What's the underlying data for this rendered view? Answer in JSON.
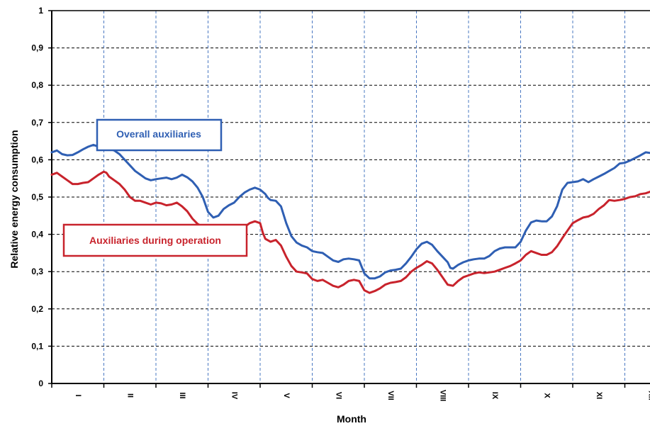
{
  "chart_data": {
    "type": "line",
    "title": "",
    "xlabel": "Month",
    "ylabel": "Relative energy consumption",
    "ylim": [
      0,
      1
    ],
    "x_range_months": [
      0,
      11.6
    ],
    "yticks": [
      "0",
      "0,1",
      "0,2",
      "0,3",
      "0,4",
      "0,5",
      "0,6",
      "0,7",
      "0,8",
      "0,9",
      "1"
    ],
    "categories": [
      "I",
      "II",
      "III",
      "IV",
      "V",
      "VI",
      "VII",
      "VIII",
      "IX",
      "X",
      "XI",
      "XII"
    ],
    "grid": {
      "horizontal": true,
      "vertical": true,
      "style": "dashed"
    },
    "series": [
      {
        "name": "Overall auxiliaries",
        "color": "#2f5fb3",
        "points": [
          [
            0.0,
            0.62
          ],
          [
            0.1,
            0.625
          ],
          [
            0.2,
            0.615
          ],
          [
            0.3,
            0.612
          ],
          [
            0.4,
            0.613
          ],
          [
            0.5,
            0.62
          ],
          [
            0.6,
            0.628
          ],
          [
            0.7,
            0.635
          ],
          [
            0.8,
            0.64
          ],
          [
            0.9,
            0.635
          ],
          [
            1.0,
            0.632
          ],
          [
            1.05,
            0.628
          ],
          [
            1.1,
            0.63
          ],
          [
            1.2,
            0.625
          ],
          [
            1.3,
            0.615
          ],
          [
            1.4,
            0.6
          ],
          [
            1.5,
            0.585
          ],
          [
            1.6,
            0.57
          ],
          [
            1.7,
            0.56
          ],
          [
            1.8,
            0.55
          ],
          [
            1.9,
            0.545
          ],
          [
            2.0,
            0.548
          ],
          [
            2.1,
            0.55
          ],
          [
            2.2,
            0.552
          ],
          [
            2.3,
            0.548
          ],
          [
            2.4,
            0.552
          ],
          [
            2.5,
            0.56
          ],
          [
            2.6,
            0.553
          ],
          [
            2.7,
            0.542
          ],
          [
            2.8,
            0.525
          ],
          [
            2.9,
            0.5
          ],
          [
            3.0,
            0.46
          ],
          [
            3.1,
            0.445
          ],
          [
            3.2,
            0.45
          ],
          [
            3.3,
            0.468
          ],
          [
            3.4,
            0.478
          ],
          [
            3.5,
            0.485
          ],
          [
            3.6,
            0.5
          ],
          [
            3.7,
            0.512
          ],
          [
            3.8,
            0.52
          ],
          [
            3.9,
            0.525
          ],
          [
            4.0,
            0.52
          ],
          [
            4.1,
            0.508
          ],
          [
            4.15,
            0.498
          ],
          [
            4.2,
            0.492
          ],
          [
            4.3,
            0.49
          ],
          [
            4.4,
            0.475
          ],
          [
            4.5,
            0.43
          ],
          [
            4.6,
            0.395
          ],
          [
            4.7,
            0.378
          ],
          [
            4.8,
            0.37
          ],
          [
            4.9,
            0.365
          ],
          [
            5.0,
            0.355
          ],
          [
            5.1,
            0.352
          ],
          [
            5.2,
            0.35
          ],
          [
            5.3,
            0.34
          ],
          [
            5.4,
            0.33
          ],
          [
            5.5,
            0.326
          ],
          [
            5.6,
            0.333
          ],
          [
            5.7,
            0.335
          ],
          [
            5.8,
            0.333
          ],
          [
            5.9,
            0.33
          ],
          [
            6.0,
            0.295
          ],
          [
            6.1,
            0.282
          ],
          [
            6.2,
            0.282
          ],
          [
            6.3,
            0.287
          ],
          [
            6.4,
            0.298
          ],
          [
            6.5,
            0.303
          ],
          [
            6.6,
            0.305
          ],
          [
            6.7,
            0.308
          ],
          [
            6.8,
            0.322
          ],
          [
            6.9,
            0.34
          ],
          [
            7.0,
            0.36
          ],
          [
            7.1,
            0.375
          ],
          [
            7.2,
            0.38
          ],
          [
            7.3,
            0.372
          ],
          [
            7.4,
            0.355
          ],
          [
            7.5,
            0.34
          ],
          [
            7.6,
            0.325
          ],
          [
            7.65,
            0.31
          ],
          [
            7.7,
            0.308
          ],
          [
            7.8,
            0.318
          ],
          [
            7.9,
            0.325
          ],
          [
            8.0,
            0.33
          ],
          [
            8.1,
            0.333
          ],
          [
            8.2,
            0.335
          ],
          [
            8.3,
            0.335
          ],
          [
            8.4,
            0.342
          ],
          [
            8.5,
            0.355
          ],
          [
            8.6,
            0.362
          ],
          [
            8.7,
            0.365
          ],
          [
            8.8,
            0.365
          ],
          [
            8.9,
            0.365
          ],
          [
            9.0,
            0.38
          ],
          [
            9.1,
            0.41
          ],
          [
            9.2,
            0.432
          ],
          [
            9.3,
            0.437
          ],
          [
            9.4,
            0.435
          ],
          [
            9.5,
            0.435
          ],
          [
            9.6,
            0.448
          ],
          [
            9.7,
            0.475
          ],
          [
            9.8,
            0.52
          ],
          [
            9.9,
            0.538
          ],
          [
            10.0,
            0.54
          ],
          [
            10.1,
            0.542
          ],
          [
            10.2,
            0.548
          ],
          [
            10.3,
            0.54
          ],
          [
            10.4,
            0.548
          ],
          [
            10.5,
            0.555
          ],
          [
            10.6,
            0.562
          ],
          [
            10.7,
            0.57
          ],
          [
            10.8,
            0.578
          ],
          [
            10.9,
            0.59
          ],
          [
            11.0,
            0.592
          ],
          [
            11.1,
            0.598
          ],
          [
            11.2,
            0.605
          ],
          [
            11.3,
            0.612
          ],
          [
            11.4,
            0.62
          ],
          [
            11.5,
            0.618
          ],
          [
            11.6,
            0.612
          ]
        ]
      },
      {
        "name": "Auxiliaries during operation",
        "color": "#c8232c",
        "points": [
          [
            0.0,
            0.56
          ],
          [
            0.1,
            0.565
          ],
          [
            0.2,
            0.555
          ],
          [
            0.3,
            0.545
          ],
          [
            0.4,
            0.535
          ],
          [
            0.5,
            0.535
          ],
          [
            0.6,
            0.538
          ],
          [
            0.7,
            0.54
          ],
          [
            0.8,
            0.55
          ],
          [
            0.9,
            0.56
          ],
          [
            1.0,
            0.568
          ],
          [
            1.05,
            0.565
          ],
          [
            1.1,
            0.555
          ],
          [
            1.2,
            0.545
          ],
          [
            1.3,
            0.535
          ],
          [
            1.4,
            0.52
          ],
          [
            1.5,
            0.5
          ],
          [
            1.6,
            0.49
          ],
          [
            1.7,
            0.49
          ],
          [
            1.8,
            0.485
          ],
          [
            1.9,
            0.48
          ],
          [
            2.0,
            0.485
          ],
          [
            2.1,
            0.483
          ],
          [
            2.2,
            0.478
          ],
          [
            2.3,
            0.48
          ],
          [
            2.4,
            0.485
          ],
          [
            2.5,
            0.475
          ],
          [
            2.6,
            0.462
          ],
          [
            2.7,
            0.442
          ],
          [
            2.8,
            0.428
          ],
          [
            2.9,
            0.42
          ],
          [
            3.0,
            0.418
          ],
          [
            3.1,
            0.418
          ],
          [
            3.2,
            0.42
          ],
          [
            3.3,
            0.422
          ],
          [
            3.4,
            0.425
          ],
          [
            3.5,
            0.42
          ],
          [
            3.6,
            0.418
          ],
          [
            3.7,
            0.42
          ],
          [
            3.8,
            0.43
          ],
          [
            3.9,
            0.435
          ],
          [
            4.0,
            0.43
          ],
          [
            4.05,
            0.405
          ],
          [
            4.1,
            0.388
          ],
          [
            4.2,
            0.38
          ],
          [
            4.3,
            0.385
          ],
          [
            4.4,
            0.37
          ],
          [
            4.5,
            0.34
          ],
          [
            4.6,
            0.315
          ],
          [
            4.7,
            0.3
          ],
          [
            4.8,
            0.298
          ],
          [
            4.9,
            0.295
          ],
          [
            5.0,
            0.28
          ],
          [
            5.1,
            0.275
          ],
          [
            5.2,
            0.278
          ],
          [
            5.3,
            0.27
          ],
          [
            5.4,
            0.262
          ],
          [
            5.5,
            0.258
          ],
          [
            5.6,
            0.265
          ],
          [
            5.7,
            0.275
          ],
          [
            5.8,
            0.278
          ],
          [
            5.9,
            0.275
          ],
          [
            6.0,
            0.25
          ],
          [
            6.1,
            0.243
          ],
          [
            6.2,
            0.248
          ],
          [
            6.3,
            0.255
          ],
          [
            6.4,
            0.265
          ],
          [
            6.5,
            0.27
          ],
          [
            6.6,
            0.272
          ],
          [
            6.7,
            0.275
          ],
          [
            6.8,
            0.285
          ],
          [
            6.9,
            0.3
          ],
          [
            7.0,
            0.31
          ],
          [
            7.1,
            0.318
          ],
          [
            7.2,
            0.328
          ],
          [
            7.3,
            0.322
          ],
          [
            7.4,
            0.305
          ],
          [
            7.5,
            0.285
          ],
          [
            7.6,
            0.265
          ],
          [
            7.7,
            0.262
          ],
          [
            7.8,
            0.275
          ],
          [
            7.9,
            0.285
          ],
          [
            8.0,
            0.29
          ],
          [
            8.1,
            0.295
          ],
          [
            8.2,
            0.298
          ],
          [
            8.3,
            0.296
          ],
          [
            8.4,
            0.298
          ],
          [
            8.5,
            0.3
          ],
          [
            8.6,
            0.305
          ],
          [
            8.7,
            0.31
          ],
          [
            8.8,
            0.315
          ],
          [
            8.9,
            0.322
          ],
          [
            9.0,
            0.33
          ],
          [
            9.1,
            0.345
          ],
          [
            9.2,
            0.355
          ],
          [
            9.3,
            0.35
          ],
          [
            9.4,
            0.345
          ],
          [
            9.5,
            0.345
          ],
          [
            9.6,
            0.352
          ],
          [
            9.7,
            0.368
          ],
          [
            9.8,
            0.39
          ],
          [
            9.9,
            0.41
          ],
          [
            10.0,
            0.43
          ],
          [
            10.1,
            0.438
          ],
          [
            10.2,
            0.445
          ],
          [
            10.3,
            0.448
          ],
          [
            10.4,
            0.455
          ],
          [
            10.5,
            0.468
          ],
          [
            10.6,
            0.478
          ],
          [
            10.7,
            0.492
          ],
          [
            10.8,
            0.49
          ],
          [
            10.9,
            0.492
          ],
          [
            11.0,
            0.495
          ],
          [
            11.1,
            0.5
          ],
          [
            11.2,
            0.502
          ],
          [
            11.3,
            0.508
          ],
          [
            11.4,
            0.51
          ],
          [
            11.5,
            0.515
          ],
          [
            11.6,
            0.505
          ]
        ]
      }
    ],
    "annotations": [
      {
        "text": "Overall auxiliaries",
        "series": 0,
        "placement": "upper-left"
      },
      {
        "text": "Auxiliaries during operation",
        "series": 1,
        "placement": "middle-left"
      }
    ]
  }
}
